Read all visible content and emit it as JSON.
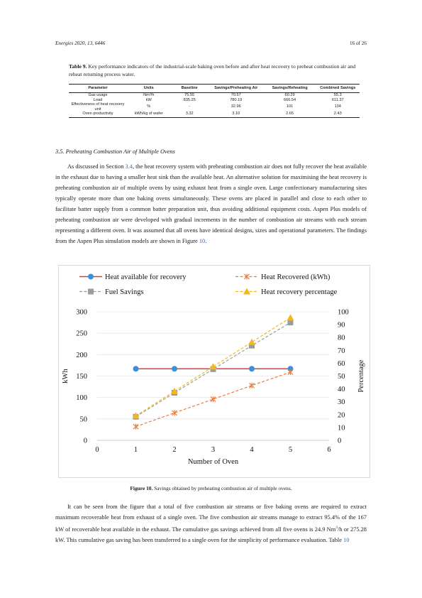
{
  "header": {
    "journal": "Energies 2020, 13, 6446",
    "page": "16 of 26"
  },
  "table": {
    "label": "Table 9.",
    "caption": "Key performance indicators of the industrial-scale baking oven before and after heat recovery to preheat combustion air and reheat returning process water.",
    "columns": [
      "Parameter",
      "Units",
      "Baseline",
      "Savings/Preheating Air",
      "Savings/Reheating",
      "Combined Savings"
    ],
    "rows": [
      [
        "Gas usage",
        "Nm³/h",
        "75.55",
        "70.57",
        "60.29",
        "55.3"
      ],
      [
        "Load",
        "kW",
        "835.25",
        "780.19",
        "666.54",
        "611.37"
      ],
      [
        "Effectiveness of heat recovery unit",
        "%",
        "-",
        "32.96",
        "101",
        "134"
      ],
      [
        "Oven productivity",
        "kWh/kg of wafer",
        "3.32",
        "3.10",
        "2.65",
        "2.43"
      ]
    ]
  },
  "section": {
    "heading": "3.5. Preheating Combustion Air of Multiple Ovens",
    "p1_a": "As discussed in Section ",
    "p1_link": "3.4",
    "p1_b": ", the heat recovery system with preheating combustion air does not fully recover the heat available in the exhaust due to having a smaller heat sink than the available heat. An alternative solution for maximising the heat recovery is preheating combustion air of multiple ovens by using exhaust heat from a single oven. Large confectionary manufacturing sites typically operate more than one baking ovens simultaneously. These ovens are placed in parallel and close to each other to facilitate batter supply from a common batter preparation unit, thus avoiding additional equipment costs. Aspen Plus models of preheating combustion air were developed with gradual increments in the number of combustion air streams with each stream representing a different oven. It was assumed that all ovens have identical designs, sizes and operational parameters. The findings from the Aspen Plus simulation models are shown in Figure ",
    "p1_link2": "10",
    "p1_c": ".",
    "p2_a": "It can be seen from the figure that a total of five combustion air streams or five baking ovens are required to extract maximum recoverable heat from exhaust of a single oven. The five combustion air streams manage to extract 95.4% of the 167 kW of recoverable heat available in the exhaust. The cumulative gas savings achieved from all five ovens is 24.9 Nm",
    "p2_sup": "3",
    "p2_b": "/h or 275.28 kW. This cumulative gas saving has been transferred to a single oven for the simplicity of performance evaluation. Table ",
    "p2_link": "10"
  },
  "figure": {
    "label": "Figure 10.",
    "caption": "Savings obtained by preheating combustion air of multiple ovens."
  },
  "chart_data": {
    "type": "line",
    "xlabel": "Number of Oven",
    "ylabel": "kWh",
    "y2label": "Percentage",
    "xlim": [
      0,
      6
    ],
    "ylim": [
      0,
      300
    ],
    "y2lim": [
      0,
      100
    ],
    "xticks": [
      0,
      1,
      2,
      3,
      4,
      5,
      6
    ],
    "yticks": [
      0,
      50,
      100,
      150,
      200,
      250,
      300
    ],
    "y2ticks": [
      0,
      10,
      20,
      30,
      40,
      50,
      60,
      70,
      80,
      90,
      100
    ],
    "legend_position": "top",
    "series": [
      {
        "name": "Heat available for recovery",
        "axis": "left",
        "color": "#e8392f",
        "marker_color": "#3e8fd8",
        "marker": "circle",
        "dash": "solid",
        "x": [
          1,
          2,
          3,
          4,
          5
        ],
        "values": [
          167,
          167,
          167,
          167,
          167
        ]
      },
      {
        "name": "Heat Recovered (kWh)",
        "axis": "left",
        "color": "#ef7d3a",
        "marker_color": "#ef7d3a",
        "marker": "x",
        "dash": "dashed",
        "x": [
          1,
          2,
          3,
          4,
          5
        ],
        "values": [
          32,
          64,
          96,
          128,
          159
        ]
      },
      {
        "name": "Fuel Savings",
        "axis": "left",
        "color": "#9c9c9c",
        "marker_color": "#9c9c9c",
        "marker": "square",
        "dash": "dashed",
        "x": [
          1,
          2,
          3,
          4,
          5
        ],
        "values": [
          55,
          111,
          166,
          221,
          275
        ]
      },
      {
        "name": "Heat recovery percentage",
        "axis": "right",
        "color": "#f5b81c",
        "marker_color": "#f5b81c",
        "marker": "triangle",
        "dash": "dashed",
        "x": [
          1,
          2,
          3,
          4,
          5
        ],
        "values": [
          19.1,
          38.2,
          57.3,
          76.4,
          95.4
        ]
      }
    ]
  }
}
